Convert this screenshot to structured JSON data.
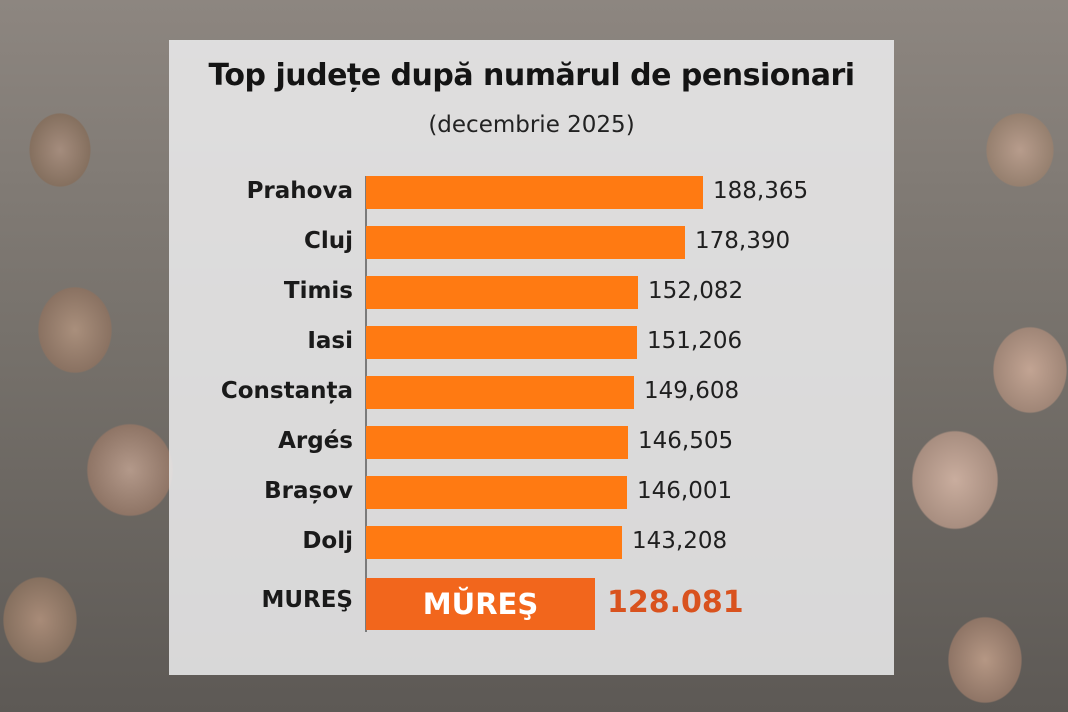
{
  "chart_data": {
    "type": "bar",
    "orientation": "horizontal",
    "title": "Top județe după numărul de pensionari",
    "subtitle": "(decembrie 2025)",
    "categories": [
      "Prahova",
      "Cluj",
      "Timis",
      "Iasi",
      "Constanța",
      "Argés",
      "Brașov",
      "Dolj"
    ],
    "values": [
      188365,
      178390,
      152082,
      151206,
      149608,
      146505,
      146001,
      143208
    ],
    "value_labels": [
      "188,365",
      "178,390",
      "152,082",
      "151,206",
      "149,608",
      "146,505",
      "146,001",
      "143,208"
    ],
    "highlight": {
      "category": "MUREŞ",
      "bar_text": "MŬREŞ",
      "value": 128081,
      "value_label": "128.081"
    },
    "xlim": [
      0,
      188365
    ],
    "grid": false,
    "legend": "none",
    "bar_color": "#ff7a12",
    "highlight_color": "#f2661c",
    "highlight_value_color": "#d9521e"
  }
}
